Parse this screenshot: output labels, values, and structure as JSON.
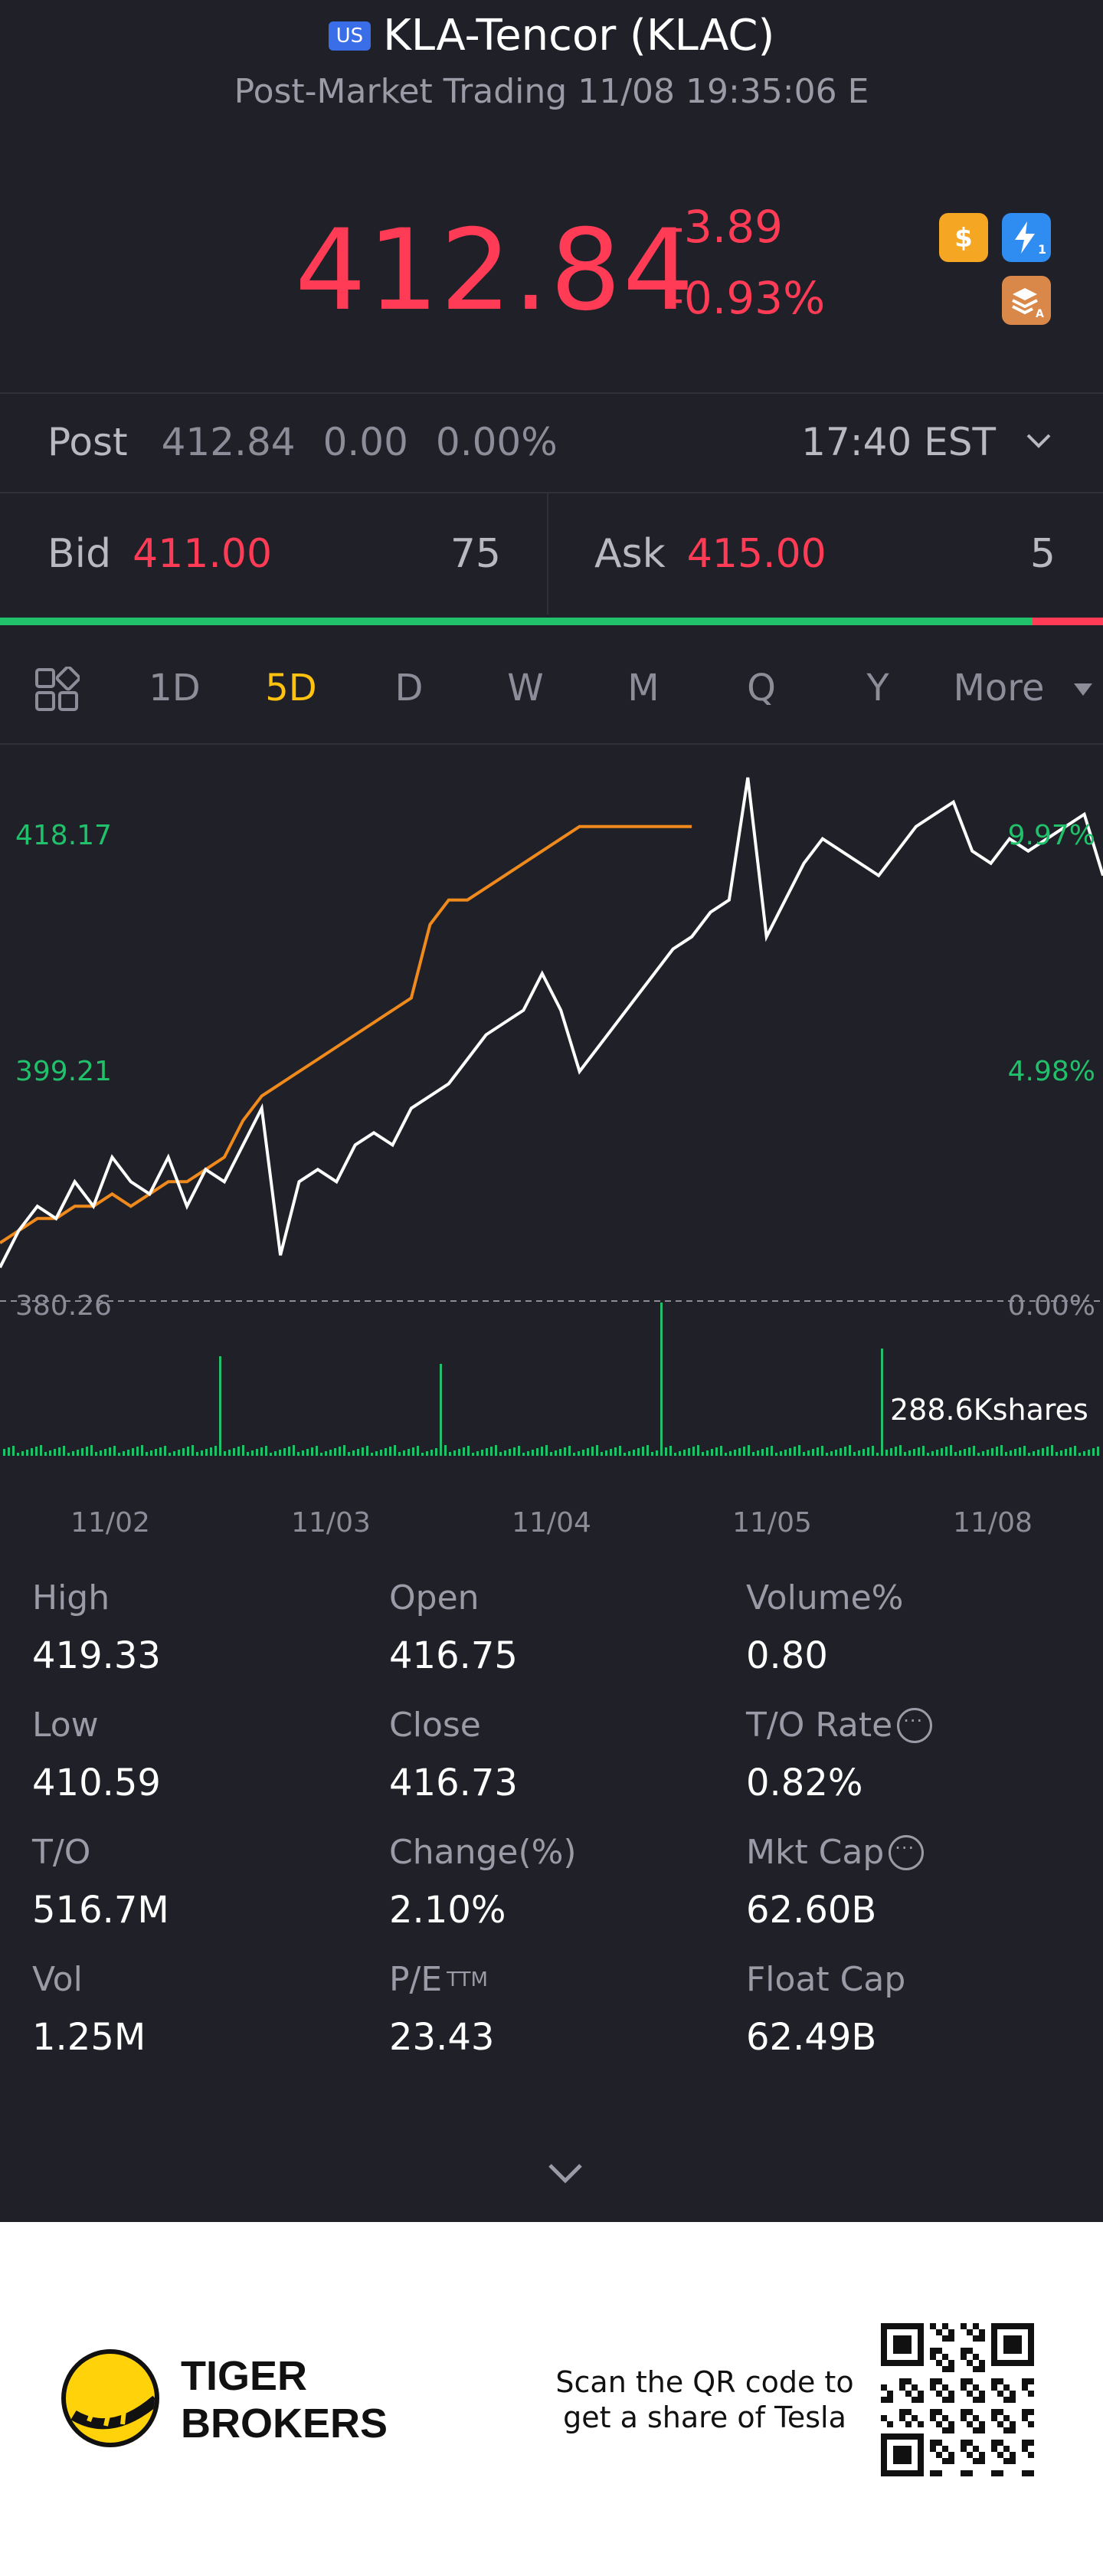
{
  "header": {
    "market_badge": "US",
    "title": "KLA-Tencor (KLAC)",
    "subtitle": "Post-Market Trading 11/08 19:35:06 E",
    "price": "412.84",
    "change": "-3.89",
    "change_pct": "-0.93%",
    "icons": [
      "dollar-icon",
      "lightning-level-1-icon",
      "layers-icon"
    ]
  },
  "post": {
    "label": "Post",
    "price": "412.84",
    "change": "0.00",
    "change_pct": "0.00%",
    "time": "17:40 EST"
  },
  "bid": {
    "label": "Bid",
    "price": "411.00",
    "size": "75"
  },
  "ask": {
    "label": "Ask",
    "price": "415.00",
    "size": "5"
  },
  "bid_ask_ratio": 0.936,
  "periods": [
    "1D",
    "5D",
    "D",
    "W",
    "M",
    "Q",
    "Y",
    "More"
  ],
  "active_period": "5D",
  "chart_data": {
    "type": "line",
    "y_left_ticks": [
      "418.17",
      "399.21",
      "380.26"
    ],
    "y_right_ticks": [
      "9.97%",
      "4.98%",
      "0.00%"
    ],
    "x_ticks": [
      "11/02",
      "11/03",
      "11/04",
      "11/05",
      "11/08"
    ],
    "volume_label": "288.6Kshares",
    "series": [
      {
        "values": [
          383,
          386,
          388,
          387,
          390,
          388,
          392,
          390,
          389,
          392,
          388,
          391,
          390,
          393,
          396,
          384,
          390,
          391,
          390,
          393,
          394,
          393,
          396,
          397,
          398,
          400,
          402,
          403,
          404,
          407,
          404,
          399,
          401,
          403,
          405,
          407,
          409,
          410,
          412,
          413,
          423,
          410,
          413,
          416,
          418,
          417,
          416,
          415,
          417,
          419,
          420,
          421,
          417,
          416,
          418,
          417,
          418,
          419,
          420,
          415
        ]
      },
      {
        "values": [
          385,
          386,
          387,
          387,
          388,
          388,
          389,
          388,
          389,
          390,
          390,
          391,
          392,
          395,
          397,
          398,
          399,
          400,
          401,
          402,
          403,
          404,
          405,
          411,
          413,
          413,
          414,
          415,
          416,
          417,
          418,
          419,
          419,
          419,
          419,
          419,
          419,
          419
        ]
      }
    ]
  },
  "stats": [
    {
      "key": "High",
      "value": "419.33"
    },
    {
      "key": "Open",
      "value": "416.75"
    },
    {
      "key": "Volume%",
      "value": "0.80"
    },
    {
      "key": "Low",
      "value": "410.59"
    },
    {
      "key": "Close",
      "value": "416.73"
    },
    {
      "key": "T/O Rate",
      "value": "0.82%"
    },
    {
      "key": "T/O",
      "value": "516.7M"
    },
    {
      "key": "Change(%)",
      "value": "2.10%"
    },
    {
      "key": "Mkt Cap",
      "value": "62.60B"
    },
    {
      "key": "Vol",
      "value": "1.25M"
    },
    {
      "key": "P/E",
      "key_sup": "TTM",
      "value": "23.43"
    },
    {
      "key": "Float Cap",
      "value": "62.49B"
    }
  ],
  "footer": {
    "brand_line1": "TIGER",
    "brand_line2": "BROKERS",
    "scan_line1": "Scan the QR code to",
    "scan_line2": "get a share of Tesla"
  },
  "colors": {
    "up": "#21c06b",
    "down": "#ff3b55",
    "accent": "#ffc20e",
    "avg_line": "#f08a1c",
    "background": "#1f2028"
  }
}
